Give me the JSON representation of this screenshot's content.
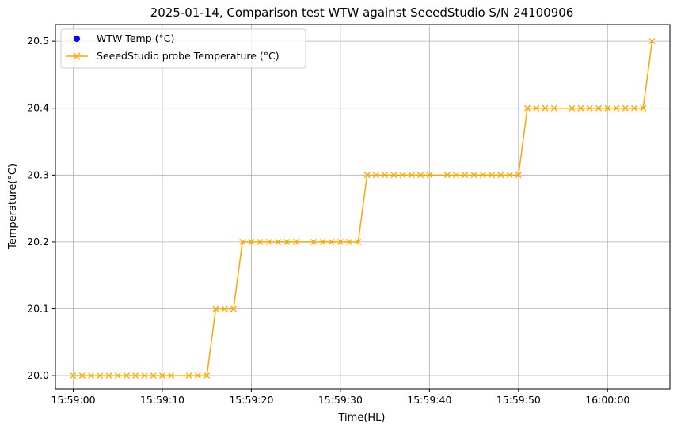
{
  "chart_data": {
    "type": "line",
    "title": "2025-01-14, Comparison test WTW against SeeedStudio S/N 24100906",
    "xlabel": "Time(HL)",
    "ylabel": "Temperature(°C)",
    "x_ticks": [
      "15:59:00",
      "15:59:10",
      "15:59:20",
      "15:59:30",
      "15:59:40",
      "15:59:50",
      "16:00:00"
    ],
    "y_ticks": [
      "20.0",
      "20.1",
      "20.2",
      "20.3",
      "20.4",
      "20.5"
    ],
    "xlim": [
      "15:58:58",
      "16:00:07"
    ],
    "ylim": [
      19.98,
      20.525
    ],
    "grid": true,
    "legend_position": "top-left",
    "series": [
      {
        "name": "WTW Temp (°C)",
        "marker": "circle",
        "color": "#0000ff",
        "x": [],
        "y": []
      },
      {
        "name": "SeeedStudio probe Temperature (°C)",
        "marker": "x",
        "color": "#ffa500",
        "x": [
          "15:59:00",
          "15:59:01",
          "15:59:02",
          "15:59:03",
          "15:59:04",
          "15:59:05",
          "15:59:06",
          "15:59:07",
          "15:59:08",
          "15:59:09",
          "15:59:10",
          "15:59:11",
          "15:59:13",
          "15:59:14",
          "15:59:15",
          "15:59:16",
          "15:59:17",
          "15:59:18",
          "15:59:19",
          "15:59:20",
          "15:59:21",
          "15:59:22",
          "15:59:23",
          "15:59:24",
          "15:59:25",
          "15:59:27",
          "15:59:28",
          "15:59:29",
          "15:59:30",
          "15:59:31",
          "15:59:32",
          "15:59:33",
          "15:59:34",
          "15:59:35",
          "15:59:36",
          "15:59:37",
          "15:59:38",
          "15:59:39",
          "15:59:40",
          "15:59:42",
          "15:59:43",
          "15:59:44",
          "15:59:45",
          "15:59:46",
          "15:59:47",
          "15:59:48",
          "15:59:49",
          "15:59:50",
          "15:59:51",
          "15:59:52",
          "15:59:53",
          "15:59:54",
          "15:59:56",
          "15:59:57",
          "15:59:58",
          "15:59:59",
          "16:00:00",
          "16:00:01",
          "16:00:02",
          "16:00:03",
          "16:00:04",
          "16:00:05"
        ],
        "y": [
          20.0,
          20.0,
          20.0,
          20.0,
          20.0,
          20.0,
          20.0,
          20.0,
          20.0,
          20.0,
          20.0,
          20.0,
          20.0,
          20.0,
          20.0,
          20.1,
          20.1,
          20.1,
          20.2,
          20.2,
          20.2,
          20.2,
          20.2,
          20.2,
          20.2,
          20.2,
          20.2,
          20.2,
          20.2,
          20.2,
          20.2,
          20.3,
          20.3,
          20.3,
          20.3,
          20.3,
          20.3,
          20.3,
          20.3,
          20.3,
          20.3,
          20.3,
          20.3,
          20.3,
          20.3,
          20.3,
          20.3,
          20.3,
          20.4,
          20.4,
          20.4,
          20.4,
          20.4,
          20.4,
          20.4,
          20.4,
          20.4,
          20.4,
          20.4,
          20.4,
          20.4,
          20.5
        ]
      }
    ]
  }
}
